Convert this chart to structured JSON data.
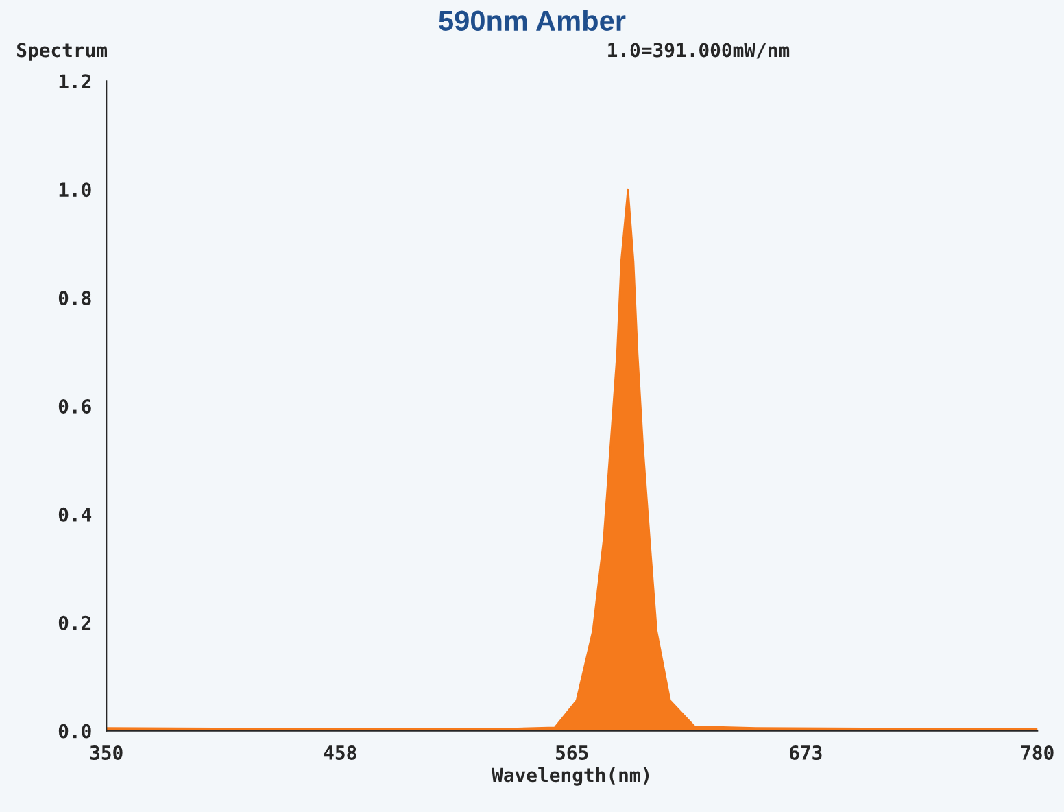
{
  "chart_data": {
    "type": "area",
    "title": "590nm Amber",
    "ylabel": "Spectrum",
    "xlabel": "Wavelength(nm)",
    "annotations": [
      "1.0=391.000mW/nm"
    ],
    "series": [
      {
        "color": "#f57a1c",
        "x": [
          350,
          400,
          450,
          500,
          540,
          557.1,
          567.2,
          574.7,
          579.7,
          582.8,
          585.9,
          587.8,
          590.9,
          593.4,
          595.3,
          597.8,
          600.9,
          604.1,
          610.3,
          621.6,
          650,
          700,
          750,
          780
        ],
        "values": [
          0.005,
          0.004,
          0.003,
          0.003,
          0.004,
          0.006,
          0.056,
          0.184,
          0.353,
          0.524,
          0.696,
          0.867,
          1.0,
          0.867,
          0.696,
          0.524,
          0.353,
          0.184,
          0.056,
          0.008,
          0.005,
          0.004,
          0.003,
          0.003
        ]
      }
    ],
    "xlim": [
      350,
      780
    ],
    "xticks": [
      350,
      458,
      565,
      673,
      780
    ],
    "ylim": [
      0,
      1.2
    ],
    "yticks": [
      {
        "value": 0,
        "label": "0.0"
      },
      0.2,
      0.4,
      0.6,
      0.8,
      {
        "value": 1,
        "label": "1.0"
      },
      1.2
    ],
    "grid": false
  }
}
